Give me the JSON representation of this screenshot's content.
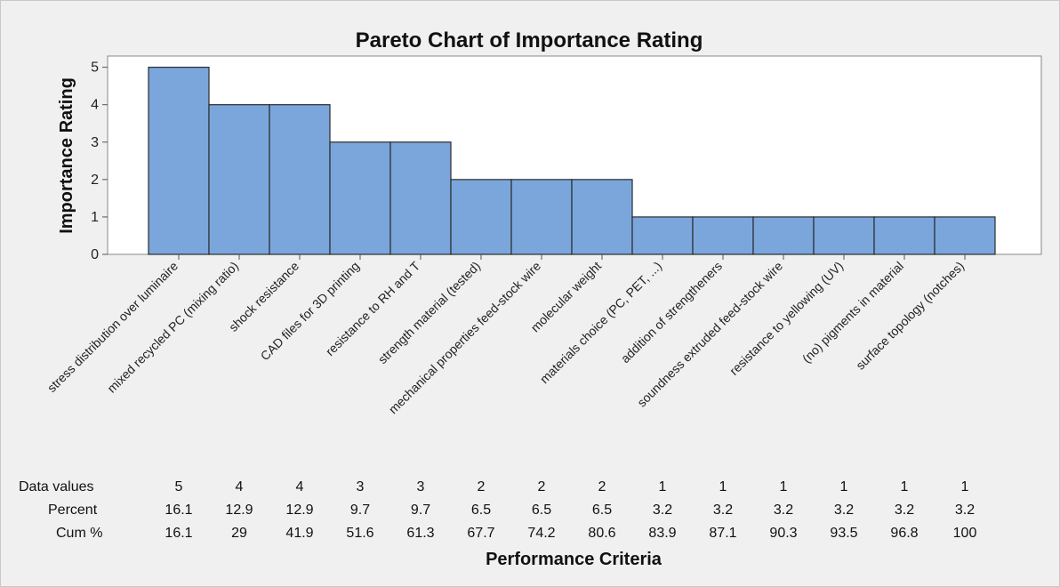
{
  "chart_data": {
    "type": "bar",
    "title": "Pareto Chart of Importance Rating",
    "xlabel": "Performance Criteria",
    "ylabel": "Importance Rating",
    "ylim": [
      0,
      5.3
    ],
    "yticks": [
      "0",
      "1",
      "2",
      "3",
      "4",
      "5"
    ],
    "categories": [
      "stress distribution over luminaire",
      "mixed recycled PC (mixing ratio)",
      "shock resistance",
      "CAD files for 3D printing",
      "resistance to RH and T",
      "strength material (tested)",
      "mechanical properties feed-stock wire",
      "molecular weight",
      "materials choice (PC, PET, ...)",
      "addition of strengtheners",
      "soundness extruded feed-stock wire",
      "resistance to yellowing (UV)",
      "(no) pigments in material",
      "surface topology (notches)"
    ],
    "values": [
      5,
      4,
      4,
      3,
      3,
      2,
      2,
      2,
      1,
      1,
      1,
      1,
      1,
      1
    ],
    "bar_color": "#7aa6dc",
    "grid": false,
    "table": {
      "row_labels": [
        "Data values",
        "Percent",
        "Cum %"
      ],
      "data_values": [
        "5",
        "4",
        "4",
        "3",
        "3",
        "2",
        "2",
        "2",
        "1",
        "1",
        "1",
        "1",
        "1",
        "1"
      ],
      "percent": [
        "16.1",
        "12.9",
        "12.9",
        "9.7",
        "9.7",
        "6.5",
        "6.5",
        "6.5",
        "3.2",
        "3.2",
        "3.2",
        "3.2",
        "3.2",
        "3.2"
      ],
      "cum_percent": [
        "16.1",
        "29",
        "41.9",
        "51.6",
        "61.3",
        "67.7",
        "74.2",
        "80.6",
        "83.9",
        "87.1",
        "90.3",
        "93.5",
        "96.8",
        "100"
      ]
    }
  }
}
